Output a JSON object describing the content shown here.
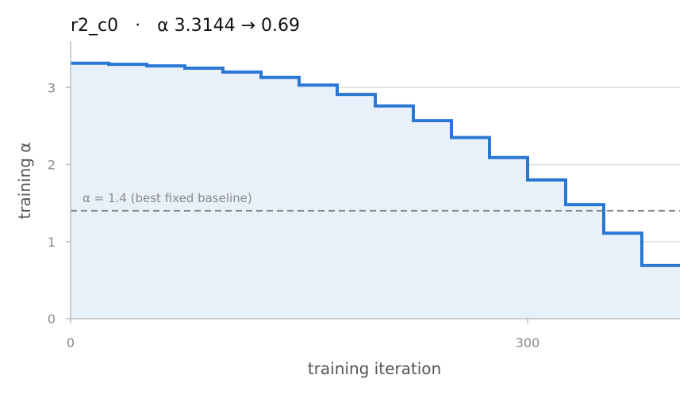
{
  "chart_data": {
    "type": "line",
    "title": "r2_c0   ·   α 3.3144 → 0.69",
    "xlabel": "training iteration",
    "ylabel": "training α",
    "xlim": [
      0,
      400
    ],
    "ylim": [
      0,
      3.6
    ],
    "xticks": [
      0,
      300
    ],
    "xtick_labels": [
      "0",
      "300"
    ],
    "yticks": [
      0,
      1,
      2,
      3
    ],
    "ytick_labels": [
      "0",
      "1",
      "2",
      "3"
    ],
    "grid": "horizontal",
    "step": true,
    "fill_under": true,
    "colors": {
      "line": "#2a78d4",
      "fill": "#e8f0fa",
      "baseline": "#8a8a8a",
      "grid": "#dde3d6",
      "axis": "#bdbdbd"
    },
    "series": [
      {
        "x": [
          0,
          25,
          50,
          75,
          100,
          125,
          150,
          175,
          200,
          225,
          250,
          275,
          300,
          325,
          350,
          375,
          400
        ],
        "values": [
          3.3144,
          3.3,
          3.28,
          3.25,
          3.2,
          3.13,
          3.03,
          2.91,
          2.76,
          2.57,
          2.35,
          2.09,
          1.8,
          1.48,
          1.11,
          0.69,
          0.69
        ]
      }
    ],
    "baseline": {
      "y": 1.4,
      "label": "α = 1.4 (best fixed baseline)"
    }
  }
}
